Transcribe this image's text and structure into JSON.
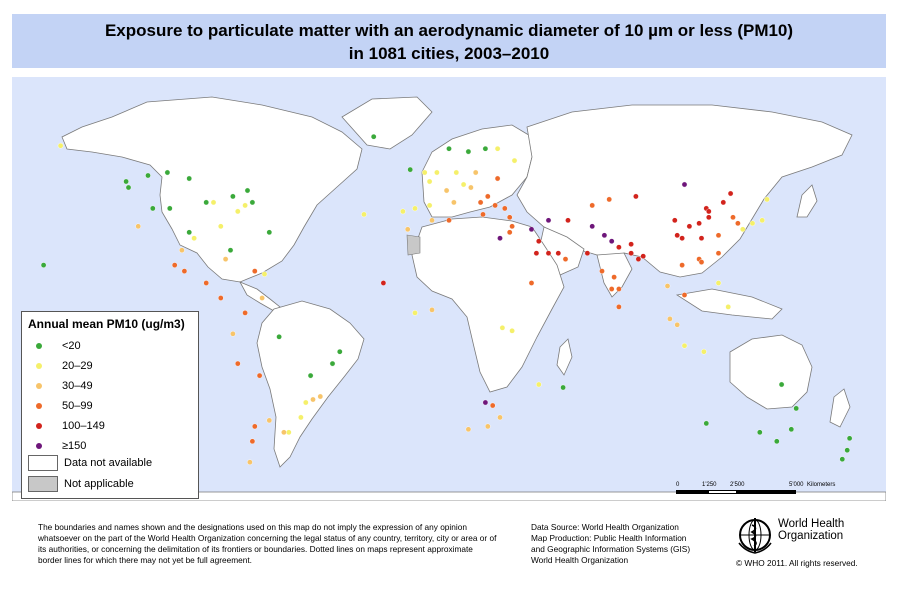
{
  "title": {
    "line1": "Exposure to particulate matter with an aerodynamic diameter of 10 µm or less (PM10)",
    "line2": "in 1081 cities, 2003–2010"
  },
  "legend": {
    "title": "Annual mean PM10 (ug/m3)",
    "classes": [
      {
        "label": "<20",
        "color": "#3aa93a"
      },
      {
        "label": "20–29",
        "color": "#f5f06a"
      },
      {
        "label": "30–49",
        "color": "#f7c46a"
      },
      {
        "label": "50–99",
        "color": "#ee6a2a"
      },
      {
        "label": "100–149",
        "color": "#d2231c"
      },
      {
        "label": "≥150",
        "color": "#6e167a"
      }
    ],
    "not_available": "Data not available",
    "not_applicable": "Not applicable"
  },
  "scale": {
    "ticks": [
      "0",
      "1'250",
      "2'500",
      "5'000"
    ],
    "unit": "Kilometers"
  },
  "footer": {
    "disclaimer": "The boundaries and names shown and the designations used on this map do not imply the expression of any opinion whatsoever on the part of the World Health Organization concerning the legal status of any country, territory, city or area or of its authorities, or concerning the delimitation of its frontiers or boundaries.  Dotted lines on maps represent approximate border lines for which there may not yet be full agreement.",
    "source_lines": [
      "Data Source: World Health Organization",
      "Map Production: Public Health Information",
      "and Geographic Information Systems (GIS)",
      "World Health Organization"
    ],
    "org_line1": "World Health",
    "org_line2": "Organization",
    "copyright": "© WHO 2011. All rights reserved."
  },
  "colors": {
    "ocean": "#dbe5fb",
    "land": "#ffffff",
    "not_applicable": "#c8c8c8",
    "title_band": "#c3d3f5"
  },
  "icons": {
    "logo": "who-emblem-icon"
  },
  "dots": [
    {
      "lon": -122,
      "lat": 47,
      "class": 0
    },
    {
      "lon": -118,
      "lat": 34,
      "class": 2
    },
    {
      "lon": -112,
      "lat": 40,
      "class": 0
    },
    {
      "lon": -105,
      "lat": 40,
      "class": 0
    },
    {
      "lon": -97,
      "lat": 32,
      "class": 0
    },
    {
      "lon": -95,
      "lat": 30,
      "class": 1
    },
    {
      "lon": -90,
      "lat": 42,
      "class": 0
    },
    {
      "lon": -87,
      "lat": 42,
      "class": 1
    },
    {
      "lon": -84,
      "lat": 34,
      "class": 1
    },
    {
      "lon": -80,
      "lat": 26,
      "class": 0
    },
    {
      "lon": -77,
      "lat": 39,
      "class": 1
    },
    {
      "lon": -74,
      "lat": 41,
      "class": 1
    },
    {
      "lon": -71,
      "lat": 42,
      "class": 0
    },
    {
      "lon": -79,
      "lat": 44,
      "class": 0
    },
    {
      "lon": -73,
      "lat": 46,
      "class": 0
    },
    {
      "lon": -114,
      "lat": 51,
      "class": 0
    },
    {
      "lon": -123,
      "lat": 49,
      "class": 0
    },
    {
      "lon": -106,
      "lat": 52,
      "class": 0
    },
    {
      "lon": -97,
      "lat": 50,
      "class": 0
    },
    {
      "lon": -150,
      "lat": 61,
      "class": 1
    },
    {
      "lon": -157,
      "lat": 21,
      "class": 0
    },
    {
      "lon": -99,
      "lat": 19,
      "class": 3
    },
    {
      "lon": -103,
      "lat": 21,
      "class": 3
    },
    {
      "lon": -100,
      "lat": 26,
      "class": 2
    },
    {
      "lon": -90,
      "lat": 15,
      "class": 3
    },
    {
      "lon": -84,
      "lat": 10,
      "class": 3
    },
    {
      "lon": -82,
      "lat": 23,
      "class": 2
    },
    {
      "lon": -70,
      "lat": 19,
      "class": 3
    },
    {
      "lon": -66,
      "lat": 18,
      "class": 1
    },
    {
      "lon": -74,
      "lat": 5,
      "class": 3
    },
    {
      "lon": -67,
      "lat": 10,
      "class": 2
    },
    {
      "lon": -79,
      "lat": -2,
      "class": 2
    },
    {
      "lon": -77,
      "lat": -12,
      "class": 3
    },
    {
      "lon": -68,
      "lat": -16,
      "class": 3
    },
    {
      "lon": -47,
      "lat": -16,
      "class": 0
    },
    {
      "lon": -43,
      "lat": -23,
      "class": 2
    },
    {
      "lon": -46,
      "lat": -24,
      "class": 2
    },
    {
      "lon": -49,
      "lat": -25,
      "class": 1
    },
    {
      "lon": -51,
      "lat": -30,
      "class": 1
    },
    {
      "lon": -38,
      "lat": -12,
      "class": 0
    },
    {
      "lon": -35,
      "lat": -8,
      "class": 0
    },
    {
      "lon": -60,
      "lat": -3,
      "class": 0
    },
    {
      "lon": -70,
      "lat": -33,
      "class": 3
    },
    {
      "lon": -58,
      "lat": -35,
      "class": 2
    },
    {
      "lon": -56,
      "lat": -35,
      "class": 1
    },
    {
      "lon": -64,
      "lat": -31,
      "class": 2
    },
    {
      "lon": -71,
      "lat": -38,
      "class": 3
    },
    {
      "lon": -72,
      "lat": -45,
      "class": 2
    },
    {
      "lon": -9,
      "lat": 39,
      "class": 1
    },
    {
      "lon": -4,
      "lat": 40,
      "class": 1
    },
    {
      "lon": 2,
      "lat": 41,
      "class": 1
    },
    {
      "lon": 2,
      "lat": 49,
      "class": 1
    },
    {
      "lon": 0,
      "lat": 52,
      "class": 1
    },
    {
      "lon": -6,
      "lat": 53,
      "class": 0
    },
    {
      "lon": 5,
      "lat": 52,
      "class": 1
    },
    {
      "lon": 13,
      "lat": 52,
      "class": 1
    },
    {
      "lon": 9,
      "lat": 46,
      "class": 2
    },
    {
      "lon": 12,
      "lat": 42,
      "class": 2
    },
    {
      "lon": 16,
      "lat": 48,
      "class": 1
    },
    {
      "lon": 21,
      "lat": 52,
      "class": 2
    },
    {
      "lon": 19,
      "lat": 47,
      "class": 2
    },
    {
      "lon": 26,
      "lat": 44,
      "class": 3
    },
    {
      "lon": 23,
      "lat": 42,
      "class": 3
    },
    {
      "lon": 24,
      "lat": 38,
      "class": 3
    },
    {
      "lon": 18,
      "lat": 59,
      "class": 0
    },
    {
      "lon": 10,
      "lat": 60,
      "class": 0
    },
    {
      "lon": 25,
      "lat": 60,
      "class": 0
    },
    {
      "lon": 30,
      "lat": 60,
      "class": 1
    },
    {
      "lon": 37,
      "lat": 56,
      "class": 1
    },
    {
      "lon": 30,
      "lat": 50,
      "class": 3
    },
    {
      "lon": -21,
      "lat": 64,
      "class": 0
    },
    {
      "lon": -25,
      "lat": 38,
      "class": 1
    },
    {
      "lon": 29,
      "lat": 41,
      "class": 3
    },
    {
      "lon": 33,
      "lat": 40,
      "class": 3
    },
    {
      "lon": 35,
      "lat": 37,
      "class": 3
    },
    {
      "lon": 36,
      "lat": 34,
      "class": 3
    },
    {
      "lon": 31,
      "lat": 30,
      "class": 5
    },
    {
      "lon": 35,
      "lat": 32,
      "class": 3
    },
    {
      "lon": 44,
      "lat": 33,
      "class": 5
    },
    {
      "lon": 51,
      "lat": 36,
      "class": 5
    },
    {
      "lon": 59,
      "lat": 36,
      "class": 4
    },
    {
      "lon": 47,
      "lat": 29,
      "class": 4
    },
    {
      "lon": 46,
      "lat": 25,
      "class": 4
    },
    {
      "lon": 51,
      "lat": 25,
      "class": 4
    },
    {
      "lon": 55,
      "lat": 25,
      "class": 4
    },
    {
      "lon": 58,
      "lat": 23,
      "class": 3
    },
    {
      "lon": 44,
      "lat": 15,
      "class": 3
    },
    {
      "lon": 69,
      "lat": 34,
      "class": 5
    },
    {
      "lon": 67,
      "lat": 25,
      "class": 4
    },
    {
      "lon": 74,
      "lat": 31,
      "class": 5
    },
    {
      "lon": 77,
      "lat": 29,
      "class": 5
    },
    {
      "lon": 80,
      "lat": 27,
      "class": 4
    },
    {
      "lon": 85,
      "lat": 25,
      "class": 4
    },
    {
      "lon": 88,
      "lat": 23,
      "class": 4
    },
    {
      "lon": 73,
      "lat": 19,
      "class": 3
    },
    {
      "lon": 78,
      "lat": 17,
      "class": 3
    },
    {
      "lon": 80,
      "lat": 13,
      "class": 3
    },
    {
      "lon": 77,
      "lat": 13,
      "class": 3
    },
    {
      "lon": 80,
      "lat": 7,
      "class": 3
    },
    {
      "lon": 90,
      "lat": 24,
      "class": 4
    },
    {
      "lon": 85,
      "lat": 28,
      "class": 4
    },
    {
      "lon": 69,
      "lat": 41,
      "class": 3
    },
    {
      "lon": 76,
      "lat": 43,
      "class": 3
    },
    {
      "lon": 107,
      "lat": 48,
      "class": 5
    },
    {
      "lon": 87,
      "lat": 44,
      "class": 4
    },
    {
      "lon": 103,
      "lat": 36,
      "class": 4
    },
    {
      "lon": 109,
      "lat": 34,
      "class": 4
    },
    {
      "lon": 116,
      "lat": 40,
      "class": 4
    },
    {
      "lon": 117,
      "lat": 39,
      "class": 4
    },
    {
      "lon": 113,
      "lat": 35,
      "class": 4
    },
    {
      "lon": 117,
      "lat": 37,
      "class": 4
    },
    {
      "lon": 121,
      "lat": 31,
      "class": 3
    },
    {
      "lon": 114,
      "lat": 30,
      "class": 4
    },
    {
      "lon": 104,
      "lat": 31,
      "class": 4
    },
    {
      "lon": 106,
      "lat": 30,
      "class": 4
    },
    {
      "lon": 113,
      "lat": 23,
      "class": 3
    },
    {
      "lon": 114,
      "lat": 22,
      "class": 3
    },
    {
      "lon": 123,
      "lat": 42,
      "class": 4
    },
    {
      "lon": 126,
      "lat": 45,
      "class": 4
    },
    {
      "lon": 127,
      "lat": 37,
      "class": 3
    },
    {
      "lon": 129,
      "lat": 35,
      "class": 3
    },
    {
      "lon": 121,
      "lat": 25,
      "class": 3
    },
    {
      "lon": 139,
      "lat": 36,
      "class": 1
    },
    {
      "lon": 135,
      "lat": 35,
      "class": 1
    },
    {
      "lon": 141,
      "lat": 43,
      "class": 1
    },
    {
      "lon": 131,
      "lat": 33,
      "class": 1
    },
    {
      "lon": 100,
      "lat": 14,
      "class": 2
    },
    {
      "lon": 106,
      "lat": 21,
      "class": 3
    },
    {
      "lon": 107,
      "lat": 11,
      "class": 3
    },
    {
      "lon": 101,
      "lat": 3,
      "class": 2
    },
    {
      "lon": 104,
      "lat": 1,
      "class": 2
    },
    {
      "lon": 107,
      "lat": -6,
      "class": 1
    },
    {
      "lon": 121,
      "lat": 15,
      "class": 1
    },
    {
      "lon": 125,
      "lat": 7,
      "class": 1
    },
    {
      "lon": 115,
      "lat": -8,
      "class": 1
    },
    {
      "lon": 151,
      "lat": -34,
      "class": 0
    },
    {
      "lon": 145,
      "lat": -38,
      "class": 0
    },
    {
      "lon": 153,
      "lat": -27,
      "class": 0
    },
    {
      "lon": 116,
      "lat": -32,
      "class": 0
    },
    {
      "lon": 138,
      "lat": -35,
      "class": 0
    },
    {
      "lon": 147,
      "lat": -19,
      "class": 0
    },
    {
      "lon": 175,
      "lat": -37,
      "class": 0
    },
    {
      "lon": 172,
      "lat": -44,
      "class": 0
    },
    {
      "lon": 174,
      "lat": -41,
      "class": 0
    },
    {
      "lon": 28,
      "lat": -26,
      "class": 3
    },
    {
      "lon": 31,
      "lat": -30,
      "class": 2
    },
    {
      "lon": 18,
      "lat": -34,
      "class": 2
    },
    {
      "lon": 26,
      "lat": -33,
      "class": 2
    },
    {
      "lon": 25,
      "lat": -25,
      "class": 5
    },
    {
      "lon": 57,
      "lat": -20,
      "class": 0
    },
    {
      "lon": 47,
      "lat": -19,
      "class": 1
    },
    {
      "lon": 36,
      "lat": -1,
      "class": 1
    },
    {
      "lon": 32,
      "lat": 0,
      "class": 1
    },
    {
      "lon": -17,
      "lat": 15,
      "class": 4
    },
    {
      "lon": -7,
      "lat": 33,
      "class": 2
    },
    {
      "lon": 3,
      "lat": 36,
      "class": 2
    },
    {
      "lon": 10,
      "lat": 36,
      "class": 3
    },
    {
      "lon": 3,
      "lat": 6,
      "class": 2
    },
    {
      "lon": -4,
      "lat": 5,
      "class": 1
    },
    {
      "lon": -64,
      "lat": 32,
      "class": 0
    }
  ]
}
